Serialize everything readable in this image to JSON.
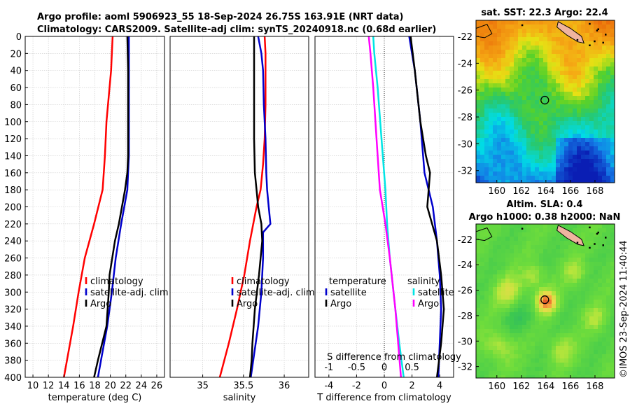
{
  "title": {
    "line1": "Argo profile: aoml 5906923_55 18-Sep-2024 26.75S 163.91E (NRT data)",
    "line2": "Climatology: CARS2009. Satellite-adj clim: synTS_20240918.nc (0.68d earlier)"
  },
  "timestamp": "©IMOS 23-Sep-2024 11:40:44",
  "colors": {
    "climatology": "#ff0000",
    "satellite": "#0000cc",
    "argo": "#000000",
    "s_satellite": "#00e5e5",
    "s_argo": "#ff00ff",
    "grid": "#c8c8c8"
  },
  "chart_data": [
    {
      "type": "line",
      "name": "temperature-profile",
      "xlabel": "temperature (deg C)",
      "ylabel": "",
      "xlim": [
        9,
        27
      ],
      "ylim": [
        400,
        0
      ],
      "xticks": [
        10,
        12,
        14,
        16,
        18,
        20,
        22,
        24,
        26
      ],
      "yticks": [
        0,
        20,
        40,
        60,
        80,
        100,
        120,
        140,
        160,
        180,
        200,
        220,
        240,
        260,
        280,
        300,
        320,
        340,
        360,
        380,
        400
      ],
      "legend": [
        "climatology",
        "satellite-adj. clim",
        "Argo"
      ],
      "series": [
        {
          "name": "climatology",
          "depth": [
            0,
            20,
            40,
            60,
            80,
            100,
            140,
            180,
            220,
            260,
            300,
            340,
            380,
            400
          ],
          "values": [
            20.3,
            20.2,
            20.1,
            19.9,
            19.7,
            19.5,
            19.3,
            19.0,
            17.9,
            16.7,
            15.9,
            15.2,
            14.4,
            14.0
          ]
        },
        {
          "name": "satellite-adj. clim",
          "depth": [
            0,
            40,
            80,
            120,
            140,
            160,
            180,
            200,
            220,
            260,
            300,
            340,
            380,
            400
          ],
          "values": [
            22.4,
            22.4,
            22.4,
            22.4,
            22.4,
            22.3,
            22.2,
            21.8,
            21.4,
            20.7,
            20.2,
            19.6,
            18.8,
            18.4
          ]
        },
        {
          "name": "Argo",
          "depth": [
            0,
            40,
            80,
            120,
            140,
            160,
            180,
            200,
            220,
            240,
            280,
            300,
            340,
            380,
            400
          ],
          "values": [
            22.2,
            22.3,
            22.3,
            22.3,
            22.3,
            22.2,
            21.9,
            21.5,
            21.1,
            20.6,
            19.9,
            19.8,
            19.5,
            18.4,
            17.9
          ]
        }
      ]
    },
    {
      "type": "line",
      "name": "salinity-profile",
      "xlabel": "salinity",
      "xlim": [
        34.6,
        36.3
      ],
      "ylim": [
        400,
        0
      ],
      "xticks": [
        35,
        35.5,
        36
      ],
      "legend": [
        "climatology",
        "satellite-adj. clim",
        "Argo"
      ],
      "series": [
        {
          "name": "climatology",
          "depth": [
            0,
            20,
            40,
            80,
            120,
            150,
            180,
            200,
            240,
            280,
            320,
            360,
            400
          ],
          "values": [
            35.76,
            35.77,
            35.77,
            35.77,
            35.76,
            35.74,
            35.71,
            35.66,
            35.58,
            35.51,
            35.42,
            35.32,
            35.21
          ]
        },
        {
          "name": "satellite-adj. clim",
          "depth": [
            0,
            10,
            20,
            40,
            80,
            120,
            160,
            180,
            200,
            220,
            230,
            260,
            300,
            340,
            380,
            400
          ],
          "values": [
            35.68,
            35.7,
            35.72,
            35.74,
            35.75,
            35.77,
            35.78,
            35.79,
            35.81,
            35.83,
            35.74,
            35.74,
            35.72,
            35.68,
            35.62,
            35.59
          ]
        },
        {
          "name": "Argo",
          "depth": [
            0,
            20,
            40,
            80,
            120,
            160,
            180,
            200,
            210,
            220,
            240,
            280,
            320,
            360,
            380,
            400
          ],
          "values": [
            35.63,
            35.63,
            35.63,
            35.63,
            35.63,
            35.64,
            35.66,
            35.68,
            35.7,
            35.72,
            35.73,
            35.69,
            35.64,
            35.61,
            35.6,
            35.58
          ]
        }
      ]
    },
    {
      "type": "line",
      "name": "difference-profile",
      "xlabel": "T difference from climatology",
      "xlim": [
        -5,
        5
      ],
      "ylim": [
        400,
        0
      ],
      "xticks": [
        -4,
        -2,
        0,
        2,
        4
      ],
      "secondary_xlabel": "S difference from climatology",
      "secondary_xlim": [
        -1.25,
        1.25
      ],
      "secondary_xticks": [
        -1,
        -0.5,
        0,
        0.5
      ],
      "secondary_ticklabels": [
        "-1",
        "-0.5",
        "0",
        "0.5"
      ],
      "legend_temperature_title": "temperature",
      "legend_salinity_title": "salinity",
      "legend": [
        "satellite",
        "Argo",
        "satellite",
        "Argo"
      ],
      "series": [
        {
          "name": "T satellite",
          "depth": [
            0,
            40,
            100,
            160,
            200,
            240,
            280,
            320,
            360,
            400
          ],
          "values": [
            1.8,
            2.2,
            2.6,
            2.9,
            3.5,
            3.8,
            4.0,
            4.1,
            4.0,
            3.9
          ]
        },
        {
          "name": "T Argo",
          "depth": [
            0,
            40,
            100,
            140,
            160,
            200,
            240,
            280,
            320,
            360,
            400
          ],
          "values": [
            1.9,
            2.2,
            2.6,
            3.0,
            3.3,
            3.1,
            3.8,
            4.1,
            4.3,
            4.1,
            3.8
          ]
        },
        {
          "name": "S satellite",
          "depth": [
            0,
            20,
            60,
            120,
            180,
            220,
            260,
            320,
            360,
            400
          ],
          "values": [
            -0.2,
            -0.18,
            -0.12,
            -0.05,
            0.02,
            0.05,
            0.1,
            0.2,
            0.27,
            0.35
          ]
        },
        {
          "name": "S Argo",
          "depth": [
            0,
            20,
            60,
            120,
            180,
            220,
            260,
            320,
            360,
            400
          ],
          "values": [
            -0.28,
            -0.25,
            -0.2,
            -0.14,
            -0.08,
            0.02,
            0.1,
            0.2,
            0.25,
            0.3
          ]
        }
      ]
    },
    {
      "type": "heatmap",
      "name": "sst-map",
      "title": "sat. SST: 22.3 Argo: 22.4",
      "xticks": [
        160,
        162,
        164,
        166,
        168
      ],
      "yticks": [
        -22,
        -24,
        -26,
        -28,
        -30,
        -32
      ],
      "xlim": [
        158.3,
        169.6
      ],
      "ylim": [
        -32.9,
        -20.8
      ],
      "marker": {
        "lon": 163.91,
        "lat": -26.75
      }
    },
    {
      "type": "heatmap",
      "name": "sla-map",
      "title_line1": "Altim. SLA: 0.4",
      "title_line2": "Argo h1000: 0.38 h2000: NaN",
      "xticks": [
        160,
        162,
        164,
        166,
        168
      ],
      "yticks": [
        -22,
        -24,
        -26,
        -28,
        -30,
        -32
      ],
      "xlim": [
        158.3,
        169.6
      ],
      "ylim": [
        -32.9,
        -20.8
      ],
      "marker": {
        "lon": 163.91,
        "lat": -26.75
      }
    }
  ]
}
